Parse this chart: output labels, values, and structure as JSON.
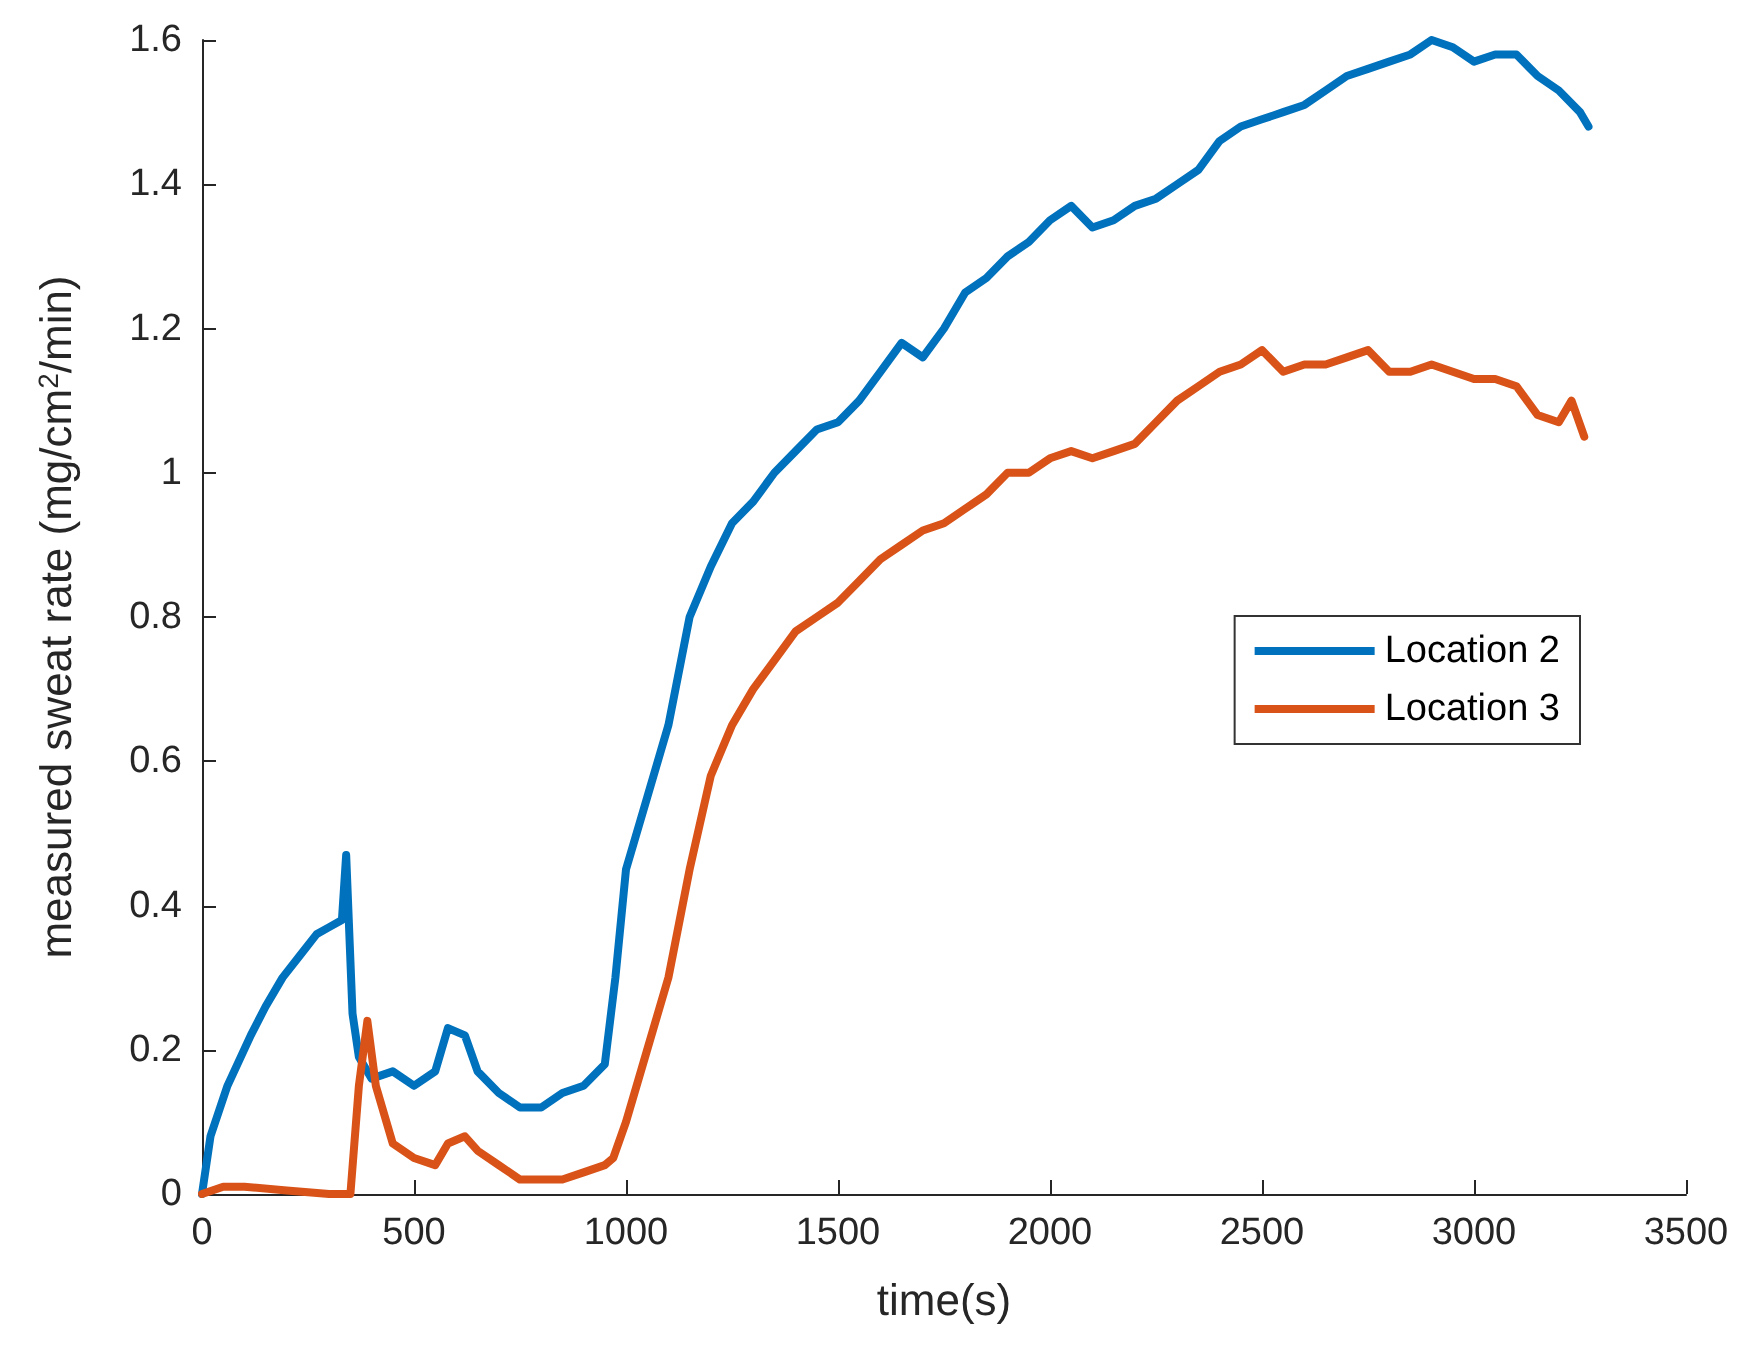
{
  "chart_data": {
    "type": "line",
    "xlabel": "time(s)",
    "ylabel": "measured sweat rate (mg/cm$^{2}$/min)",
    "xlim": [
      0,
      3500
    ],
    "xticks": [
      0,
      500,
      1000,
      1500,
      2000,
      2500,
      3000,
      3500
    ],
    "ylim": [
      0,
      1.6
    ],
    "yticks": [
      0,
      0.2,
      0.4,
      0.6,
      0.8,
      1,
      1.2,
      1.4,
      1.6
    ],
    "grid": false,
    "legend": "right",
    "marker": "none",
    "line_style": "solid",
    "series": [
      {
        "name": "Location 2",
        "color": "#0072bd",
        "x": [
          0,
          20,
          60,
          115,
          150,
          190,
          230,
          270,
          300,
          330,
          340,
          355,
          370,
          400,
          450,
          500,
          550,
          580,
          620,
          650,
          700,
          750,
          800,
          850,
          900,
          950,
          975,
          1000,
          1050,
          1100,
          1150,
          1200,
          1250,
          1300,
          1350,
          1400,
          1450,
          1500,
          1550,
          1600,
          1650,
          1700,
          1750,
          1800,
          1850,
          1900,
          1950,
          2000,
          2050,
          2100,
          2150,
          2200,
          2250,
          2300,
          2350,
          2400,
          2450,
          2500,
          2550,
          2600,
          2650,
          2700,
          2750,
          2800,
          2850,
          2900,
          2950,
          3000,
          3050,
          3100,
          3150,
          3200,
          3250,
          3270
        ],
        "values": [
          0,
          0.08,
          0.15,
          0.22,
          0.26,
          0.3,
          0.33,
          0.36,
          0.37,
          0.38,
          0.47,
          0.25,
          0.19,
          0.16,
          0.17,
          0.15,
          0.17,
          0.23,
          0.22,
          0.17,
          0.14,
          0.12,
          0.12,
          0.14,
          0.15,
          0.18,
          0.3,
          0.45,
          0.55,
          0.65,
          0.8,
          0.87,
          0.93,
          0.96,
          1.0,
          1.03,
          1.06,
          1.07,
          1.1,
          1.14,
          1.18,
          1.16,
          1.2,
          1.25,
          1.27,
          1.3,
          1.32,
          1.35,
          1.37,
          1.34,
          1.35,
          1.37,
          1.38,
          1.4,
          1.42,
          1.46,
          1.48,
          1.49,
          1.5,
          1.51,
          1.53,
          1.55,
          1.56,
          1.57,
          1.58,
          1.6,
          1.59,
          1.57,
          1.58,
          1.58,
          1.55,
          1.53,
          1.5,
          1.48
        ]
      },
      {
        "name": "Location 3",
        "color": "#d95319",
        "x": [
          0,
          50,
          100,
          200,
          300,
          350,
          370,
          390,
          410,
          450,
          500,
          550,
          580,
          620,
          650,
          700,
          750,
          800,
          850,
          900,
          950,
          970,
          1000,
          1050,
          1100,
          1150,
          1200,
          1250,
          1300,
          1350,
          1400,
          1450,
          1500,
          1550,
          1600,
          1650,
          1700,
          1750,
          1800,
          1850,
          1900,
          1950,
          2000,
          2050,
          2100,
          2150,
          2200,
          2250,
          2300,
          2350,
          2400,
          2450,
          2500,
          2550,
          2600,
          2650,
          2700,
          2750,
          2800,
          2850,
          2900,
          2950,
          3000,
          3050,
          3100,
          3150,
          3200,
          3230,
          3260
        ],
        "values": [
          0,
          0.01,
          0.01,
          0.005,
          0,
          0,
          0.15,
          0.24,
          0.15,
          0.07,
          0.05,
          0.04,
          0.07,
          0.08,
          0.06,
          0.04,
          0.02,
          0.02,
          0.02,
          0.03,
          0.04,
          0.05,
          0.1,
          0.2,
          0.3,
          0.45,
          0.58,
          0.65,
          0.7,
          0.74,
          0.78,
          0.8,
          0.82,
          0.85,
          0.88,
          0.9,
          0.92,
          0.93,
          0.95,
          0.97,
          1.0,
          1.0,
          1.02,
          1.03,
          1.02,
          1.03,
          1.04,
          1.07,
          1.1,
          1.12,
          1.14,
          1.15,
          1.17,
          1.14,
          1.15,
          1.15,
          1.16,
          1.17,
          1.14,
          1.14,
          1.15,
          1.14,
          1.13,
          1.13,
          1.12,
          1.08,
          1.07,
          1.1,
          1.05
        ]
      }
    ]
  }
}
